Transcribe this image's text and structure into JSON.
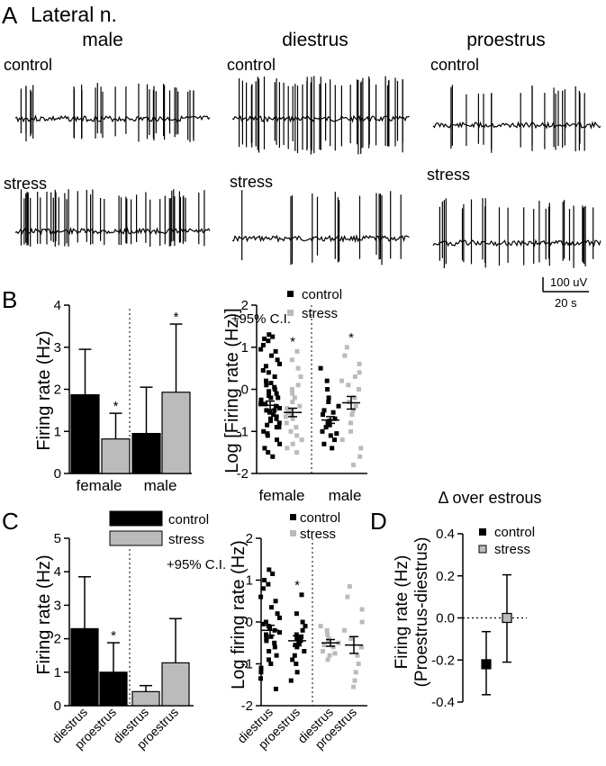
{
  "panels": {
    "A": {
      "letter": "A",
      "title": "Lateral n.",
      "columns": [
        "male",
        "diestrus",
        "proestrus"
      ],
      "row_labels": [
        "control",
        "stress"
      ],
      "scalebar": {
        "amp": "100 uV",
        "time": "20 s"
      }
    },
    "B": {
      "letter": "B"
    },
    "C": {
      "letter": "C"
    },
    "D": {
      "letter": "D"
    }
  },
  "chart_data": [
    {
      "id": "B1",
      "type": "bar",
      "ylabel": "Firing rate (Hz)",
      "ylim": [
        0,
        4
      ],
      "yticks": [
        "0",
        "1",
        "2",
        "3",
        "4"
      ],
      "annotation": "+95% C.I.",
      "groups": [
        "female",
        "male"
      ],
      "bars": [
        {
          "group": "female",
          "condition": "control",
          "value": 1.87,
          "ci_upper": 2.95
        },
        {
          "group": "female",
          "condition": "stress",
          "value": 0.82,
          "ci_upper": 1.43,
          "sig": "*"
        },
        {
          "group": "male",
          "condition": "control",
          "value": 0.95,
          "ci_upper": 2.05
        },
        {
          "group": "male",
          "condition": "stress",
          "value": 1.93,
          "ci_upper": 3.55,
          "sig": "*"
        }
      ]
    },
    {
      "id": "B2",
      "type": "scatter",
      "ylabel": "Log [Firing rate (Hz)]",
      "ylim": [
        -2,
        2
      ],
      "yticks": [
        "-2",
        "-1",
        "0",
        "1",
        "2"
      ],
      "groups": [
        "female",
        "male"
      ],
      "legend": [
        {
          "label": "control",
          "color": "#000000"
        },
        {
          "label": "stress",
          "color": "#bbbbbb"
        }
      ],
      "series": [
        {
          "group": "female",
          "condition": "control",
          "mean": -0.38,
          "sem": 0.1,
          "points": [
            1.3,
            1.25,
            1.2,
            1.15,
            1.05,
            0.95,
            0.9,
            0.8,
            0.7,
            0.6,
            0.55,
            0.45,
            0.4,
            0.3,
            0.2,
            0.15,
            0.1,
            0.05,
            0.0,
            -0.05,
            -0.1,
            -0.15,
            -0.2,
            -0.25,
            -0.3,
            -0.35,
            -0.4,
            -0.45,
            -0.5,
            -0.55,
            -0.6,
            -0.65,
            -0.7,
            -0.75,
            -0.8,
            -0.85,
            -0.9,
            -1.0,
            -1.05,
            -1.1,
            -1.2,
            -1.3,
            -1.4,
            -1.5,
            -1.6,
            -0.2,
            -0.35,
            -0.5,
            -0.7,
            -0.9
          ]
        },
        {
          "group": "female",
          "condition": "stress",
          "mean": -0.55,
          "sem": 0.1,
          "sig": "*",
          "points": [
            0.9,
            0.7,
            0.5,
            0.3,
            0.1,
            0.0,
            -0.1,
            -0.2,
            -0.3,
            -0.4,
            -0.5,
            -0.55,
            -0.6,
            -0.7,
            -0.8,
            -0.9,
            -1.0,
            -1.1,
            -1.2,
            -1.3,
            -1.4,
            -1.5,
            -0.45,
            -0.65
          ]
        },
        {
          "group": "male",
          "condition": "control",
          "mean": -0.73,
          "sem": 0.08,
          "points": [
            0.5,
            0.2,
            0.0,
            -0.2,
            -0.3,
            -0.4,
            -0.5,
            -0.55,
            -0.6,
            -0.7,
            -0.75,
            -0.8,
            -0.85,
            -0.9,
            -1.0,
            -1.05,
            -1.1,
            -1.2,
            -1.3,
            -1.4
          ]
        },
        {
          "group": "male",
          "condition": "stress",
          "mean": -0.32,
          "sem": 0.15,
          "sig": "*",
          "points": [
            1.0,
            0.8,
            0.6,
            0.4,
            0.2,
            0.1,
            0.0,
            -0.2,
            -0.4,
            -0.5,
            -0.6,
            -0.8,
            -1.0,
            -1.2,
            -1.4,
            -1.6,
            -1.8,
            0.3,
            -0.3
          ]
        }
      ]
    },
    {
      "id": "C1",
      "type": "bar",
      "ylabel": "Firing rate (Hz)",
      "ylim": [
        0,
        5
      ],
      "yticks": [
        "0",
        "1",
        "2",
        "3",
        "4",
        "5"
      ],
      "annotation": "+95% C.I.",
      "legend": [
        {
          "label": "control",
          "color": "#000000"
        },
        {
          "label": "stress",
          "color": "#bbbbbb"
        }
      ],
      "categories": [
        "diestrus",
        "proestrus",
        "diestrus",
        "proestrus"
      ],
      "bars": [
        {
          "condition": "control",
          "phase": "diestrus",
          "value": 2.3,
          "ci_upper": 3.85
        },
        {
          "condition": "control",
          "phase": "proestrus",
          "value": 1.0,
          "ci_upper": 1.88,
          "sig": "*"
        },
        {
          "condition": "stress",
          "phase": "diestrus",
          "value": 0.42,
          "ci_upper": 0.6
        },
        {
          "condition": "stress",
          "phase": "proestrus",
          "value": 1.28,
          "ci_upper": 2.6
        }
      ]
    },
    {
      "id": "C2",
      "type": "scatter",
      "ylabel": "Log firing rate (Hz)",
      "ylim": [
        -2,
        2
      ],
      "yticks": [
        "-2",
        "-1",
        "0",
        "1",
        "2"
      ],
      "legend": [
        {
          "label": "control",
          "color": "#000000"
        },
        {
          "label": "stress",
          "color": "#bbbbbb"
        }
      ],
      "categories": [
        "diestrus",
        "proestrus",
        "diestrus",
        "proestrus"
      ],
      "series": [
        {
          "condition": "control",
          "phase": "diestrus",
          "mean": -0.2,
          "sem": 0.12,
          "points": [
            1.25,
            1.15,
            1.0,
            0.9,
            0.8,
            0.6,
            0.5,
            0.35,
            0.2,
            0.1,
            0.0,
            -0.05,
            -0.1,
            -0.2,
            -0.3,
            -0.35,
            -0.4,
            -0.5,
            -0.6,
            -0.7,
            -0.8,
            -0.9,
            -1.0,
            -1.1,
            -1.2,
            -1.35,
            -1.6,
            -0.25,
            -0.45,
            -0.15
          ]
        },
        {
          "condition": "control",
          "phase": "proestrus",
          "mean": -0.45,
          "sem": 0.12,
          "sig": "*",
          "points": [
            0.65,
            0.2,
            0.0,
            -0.1,
            -0.2,
            -0.3,
            -0.4,
            -0.5,
            -0.6,
            -0.7,
            -0.8,
            -0.9,
            -1.0,
            -1.2,
            -1.4,
            -0.45,
            -0.55,
            -0.35
          ]
        },
        {
          "condition": "stress",
          "phase": "diestrus",
          "mean": -0.5,
          "sem": 0.08,
          "points": [
            -0.1,
            -0.2,
            -0.3,
            -0.4,
            -0.45,
            -0.5,
            -0.55,
            -0.6,
            -0.7,
            -0.75,
            -0.8,
            -0.9
          ]
        },
        {
          "condition": "stress",
          "phase": "proestrus",
          "mean": -0.55,
          "sem": 0.2,
          "points": [
            0.85,
            0.6,
            0.3,
            0.0,
            -0.2,
            -0.4,
            -0.6,
            -0.8,
            -1.0,
            -1.2,
            -1.4,
            -1.55
          ]
        }
      ]
    },
    {
      "id": "D",
      "type": "scatter",
      "title": "Δ over estrous",
      "ylabel": "Firing rate (Hz)",
      "ylabel2": "(Proestrus-diestrus)",
      "ylim": [
        -0.4,
        0.4
      ],
      "yticks": [
        "-0.4",
        "-0.2",
        "0.0",
        "0.2",
        "0.4"
      ],
      "legend": [
        {
          "label": "control",
          "color": "#000000"
        },
        {
          "label": "stress",
          "color": "#bbbbbb"
        }
      ],
      "points": [
        {
          "condition": "control",
          "value": -0.22,
          "lo": -0.365,
          "hi": -0.065
        },
        {
          "condition": "stress",
          "value": 0.0,
          "lo": -0.21,
          "hi": 0.205
        }
      ]
    }
  ]
}
